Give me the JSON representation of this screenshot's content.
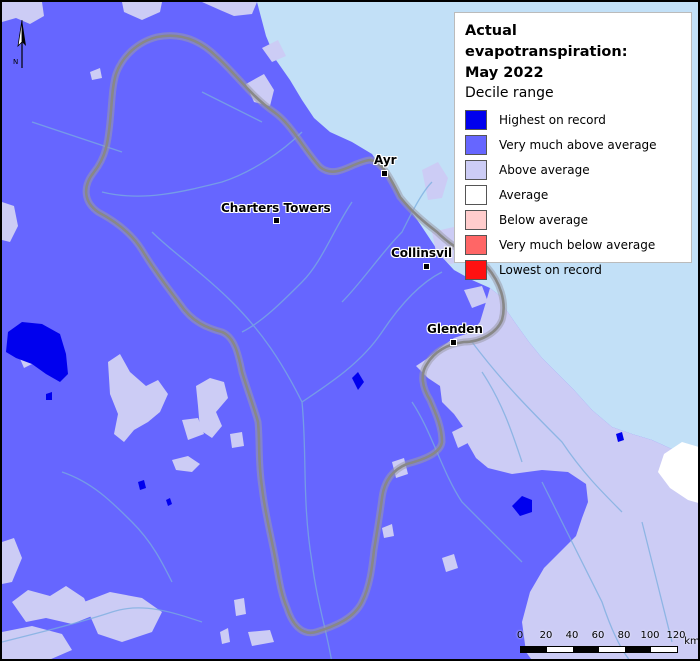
{
  "legend": {
    "title_line1": "Actual evapotranspiration:",
    "title_line2": "May 2022",
    "subtitle": "Decile range",
    "items": [
      {
        "label": "Highest on record",
        "color": "#0000ee"
      },
      {
        "label": "Very much above average",
        "color": "#6666ff"
      },
      {
        "label": "Above average",
        "color": "#ccccf5"
      },
      {
        "label": "Average",
        "color": "#ffffff"
      },
      {
        "label": "Below average",
        "color": "#ffcccc"
      },
      {
        "label": "Very much below average",
        "color": "#ff6666"
      },
      {
        "label": "Lowest on record",
        "color": "#ff1111"
      }
    ]
  },
  "towns": {
    "ayr": "Ayr",
    "charters_towers": "Charters Towers",
    "collinsville": "Collinsvil",
    "glenden": "Glenden"
  },
  "north_arrow": {
    "label": "N",
    "icon": "north-arrow-icon"
  },
  "scale_bar": {
    "ticks": [
      "0",
      "20",
      "40",
      "60",
      "80",
      "100",
      "120"
    ],
    "unit": "km"
  },
  "colors": {
    "ocean": "#c2e0f7",
    "basin_boundary": "#888888",
    "rivers": "#7aaedf"
  }
}
